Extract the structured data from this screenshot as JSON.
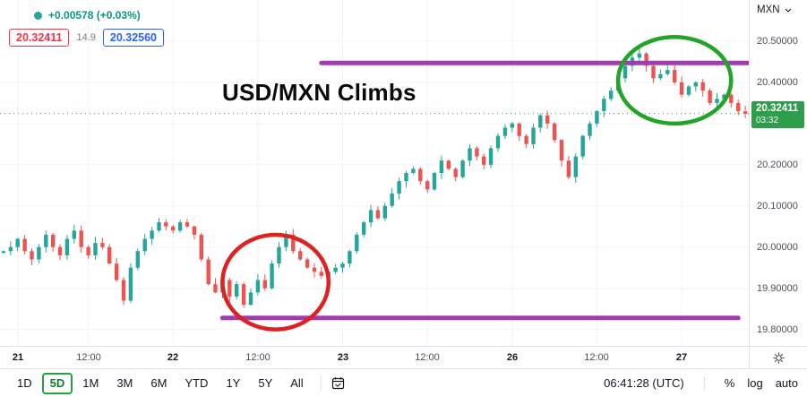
{
  "legend": {
    "change_text": "+0.00578 (+0.03%)",
    "change_color": "#089981",
    "dot_color": "#26a69a",
    "bid": "20.32411",
    "bid_color": "#f23645",
    "spread": "14.9",
    "ask": "20.32560",
    "ask_color": "#2962ff"
  },
  "annotations": {
    "title": "USD/MXN Climbs",
    "resistance": {
      "price": 20.447,
      "from_index": 45,
      "to_index": 105.5,
      "color": "#a23bb0"
    },
    "support": {
      "price": 19.828,
      "from_index": 31,
      "to_index": 104,
      "color": "#a23bb0"
    },
    "red_circle": {
      "center_index": 38.5,
      "center_price": 19.915,
      "rx_index": 7.5,
      "ry_price": 0.115,
      "color": "#dd2222"
    },
    "green_circle": {
      "center_index": 95,
      "center_price": 20.405,
      "rx_index": 8,
      "ry_price": 0.105,
      "color": "#23a327"
    }
  },
  "price_axis": {
    "currency_label": "MXN",
    "tick_labels": [
      20.5,
      20.4,
      20.2,
      20.1,
      20.0,
      19.9,
      19.8
    ],
    "last_price": 20.32411,
    "last_price_label": "20.32411",
    "countdown": "03:32",
    "badge_color": "#2e9e4c"
  },
  "toolbar": {
    "ranges": [
      "1D",
      "5D",
      "1M",
      "3M",
      "6M",
      "YTD",
      "1Y",
      "5Y",
      "All"
    ],
    "active_range": "5D",
    "clock": "06:41:28 (UTC)",
    "percent": "%",
    "log": "log",
    "auto": "auto"
  },
  "chart_data": {
    "type": "candlestick",
    "symbol": "USD/MXN",
    "title": "USD/MXN Climbs",
    "timeframe_days": [
      "21",
      "22",
      "23",
      "26",
      "27"
    ],
    "closes": [
      19.99,
      20.0,
      20.02,
      19.99,
      19.97,
      20.0,
      20.03,
      20.0,
      19.98,
      20.02,
      20.04,
      20.0,
      19.98,
      20.01,
      20.0,
      19.96,
      19.92,
      19.87,
      19.95,
      19.99,
      20.02,
      20.04,
      20.06,
      20.05,
      20.04,
      20.06,
      20.05,
      20.03,
      19.97,
      19.91,
      19.89,
      19.92,
      19.88,
      19.91,
      19.86,
      19.89,
      19.92,
      19.9,
      19.96,
      20.0,
      20.03,
      19.99,
      19.97,
      19.95,
      19.94,
      19.93,
      19.94,
      19.95,
      19.96,
      19.99,
      20.03,
      20.06,
      20.09,
      20.07,
      20.1,
      20.13,
      20.16,
      20.18,
      20.19,
      20.16,
      20.14,
      20.18,
      20.21,
      20.19,
      20.17,
      20.21,
      20.24,
      20.22,
      20.2,
      20.24,
      20.27,
      20.29,
      20.3,
      20.27,
      20.25,
      20.29,
      20.32,
      20.3,
      20.26,
      20.21,
      20.17,
      20.22,
      20.27,
      20.3,
      20.33,
      20.36,
      20.38,
      20.41,
      20.44,
      20.46,
      20.47,
      20.44,
      20.41,
      20.42,
      20.43,
      20.4,
      20.37,
      20.39,
      20.4,
      20.38,
      20.35,
      20.36,
      20.37,
      20.35,
      20.33,
      20.324
    ],
    "x_ticks": [
      {
        "i": 2,
        "label": "21"
      },
      {
        "i": 12,
        "label": "12:00"
      },
      {
        "i": 24,
        "label": "22"
      },
      {
        "i": 36,
        "label": "12:00"
      },
      {
        "i": 48,
        "label": "23"
      },
      {
        "i": 60,
        "label": "12:00"
      },
      {
        "i": 72,
        "label": "26"
      },
      {
        "i": 84,
        "label": "12:00"
      },
      {
        "i": 96,
        "label": "27"
      }
    ],
    "grid_ticks": [
      20.5,
      20.4,
      20.3,
      20.2,
      20.1,
      20.0,
      19.9,
      19.8
    ],
    "y_range": [
      19.76,
      20.6
    ],
    "up_color": "#26a69a",
    "down_color": "#ef5350",
    "grid_color": "#f0f3f7",
    "last_line_color": "#2e9e4c"
  }
}
